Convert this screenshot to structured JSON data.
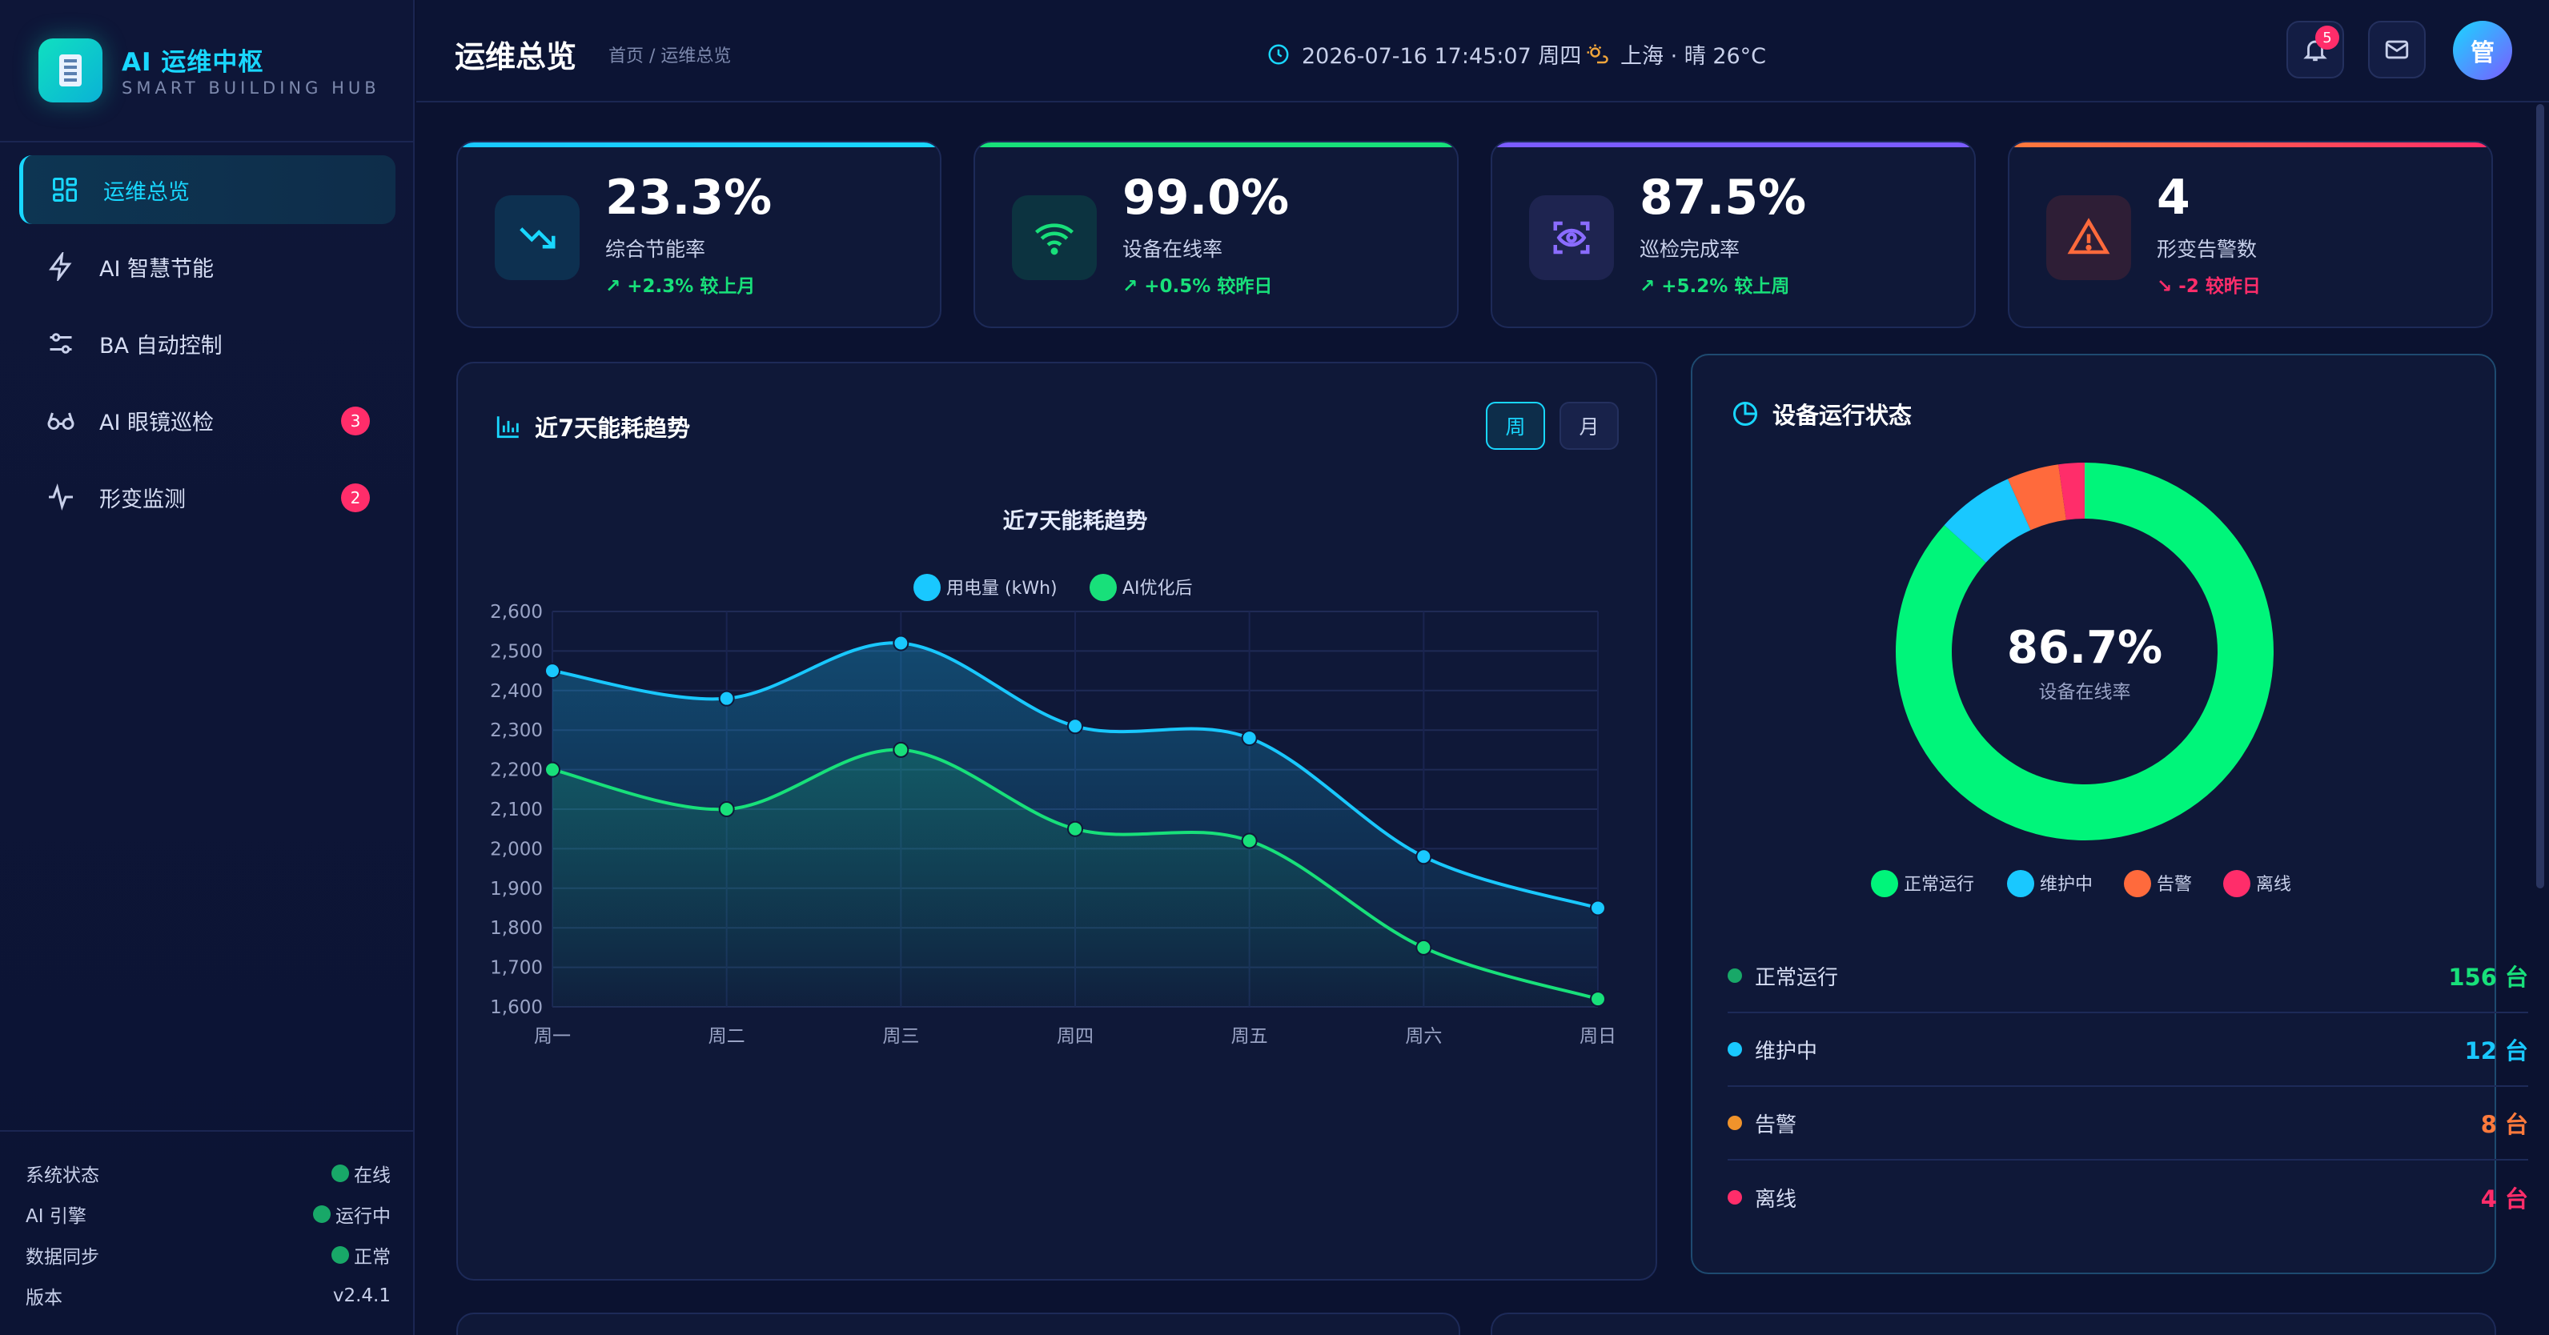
{
  "brand": {
    "title": "AI 运维中枢",
    "subtitle": "SMART BUILDING HUB"
  },
  "nav": [
    {
      "label": "运维总览",
      "icon": "grid-icon",
      "active": true
    },
    {
      "label": "AI 智慧节能",
      "icon": "lightning-icon"
    },
    {
      "label": "BA 自动控制",
      "icon": "sliders-icon"
    },
    {
      "label": "AI 眼镜巡检",
      "icon": "glasses-icon",
      "badge": "3"
    },
    {
      "label": "形变监测",
      "icon": "pulse-icon",
      "badge": "2"
    }
  ],
  "system": [
    {
      "label": "系统状态",
      "value": "在线"
    },
    {
      "label": "AI 引擎",
      "value": "运行中"
    },
    {
      "label": "数据同步",
      "value": "正常"
    },
    {
      "label": "版本",
      "value": "v2.4.1"
    }
  ],
  "header": {
    "title": "运维总览",
    "breadcrumb": "首页 / 运维总览",
    "datetime": "2026-07-16 17:45:07 周四",
    "weather": "上海 · 晴 26°C",
    "notification_count": "5",
    "avatar": "管"
  },
  "kpis": [
    {
      "value": "23.3%",
      "label": "综合节能率",
      "trend": "↗ +2.3% 较上月",
      "color": "#19d7ff",
      "icon": "trend-down-icon"
    },
    {
      "value": "99.0%",
      "label": "设备在线率",
      "trend": "↗ +0.5% 较昨日",
      "color": "#18e07a",
      "icon": "wifi-icon"
    },
    {
      "value": "87.5%",
      "label": "巡检完成率",
      "trend": "↗ +5.2% 较上周",
      "color": "#7b5cff",
      "icon": "eye-scan-icon"
    },
    {
      "value": "4",
      "label": "形变告警数",
      "trend": "↘ -2 较昨日",
      "color": "#ff5a3c",
      "icon": "warning-icon"
    }
  ],
  "energy_panel": {
    "title": "近7天能耗趋势",
    "btn_week": "周",
    "btn_month": "月"
  },
  "status_panel": {
    "title": "设备运行状态",
    "center_value": "86.7%",
    "center_label": "设备在线率",
    "rows": [
      {
        "label": "正常运行",
        "value": "156 台",
        "color": "#18a868",
        "valcolor": "#18e07a"
      },
      {
        "label": "维护中",
        "value": "12 台",
        "color": "#19c8ff",
        "valcolor": "#19c8ff"
      },
      {
        "label": "告警",
        "value": "8 台",
        "color": "#f0932b",
        "valcolor": "#ff7a3c"
      },
      {
        "label": "离线",
        "value": "4 台",
        "color": "#ff2d6a",
        "valcolor": "#ff2d6a"
      }
    ]
  },
  "chart_data": [
    {
      "type": "line",
      "title": "近7天能耗趋势",
      "categories": [
        "周一",
        "周二",
        "周三",
        "周四",
        "周五",
        "周六",
        "周日"
      ],
      "series": [
        {
          "name": "用电量 (kWh)",
          "values": [
            2450,
            2380,
            2520,
            2310,
            2280,
            1980,
            1850
          ],
          "color": "#19c8ff"
        },
        {
          "name": "AI优化后",
          "values": [
            2200,
            2100,
            2250,
            2050,
            2020,
            1750,
            1620
          ],
          "color": "#18e07a"
        }
      ],
      "ylim": [
        1600,
        2600
      ],
      "yticks": [
        "2,600",
        "2,500",
        "2,400",
        "2,300",
        "2,200",
        "2,100",
        "2,000",
        "1,900",
        "1,800",
        "1,700",
        "1,600"
      ],
      "grid": true,
      "legend": "top"
    },
    {
      "type": "pie",
      "categories": [
        "正常运行",
        "维护中",
        "告警",
        "离线"
      ],
      "values": [
        156,
        12,
        8,
        4
      ],
      "colors": [
        "#00f57a",
        "#19c8ff",
        "#ff6a3c",
        "#ff2d6a"
      ],
      "legend": "bottom"
    }
  ]
}
